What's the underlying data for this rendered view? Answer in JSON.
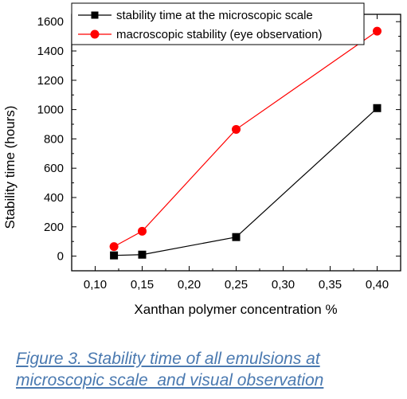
{
  "chart_data": {
    "type": "line",
    "xlabel": "Xanthan polymer concentration %",
    "ylabel": "Stability time (hours)",
    "xlim": [
      0.075,
      0.425
    ],
    "ylim": [
      -100,
      1650
    ],
    "x_ticks": [
      "0,10",
      "0,15",
      "0,20",
      "0,25",
      "0,30",
      "0,35",
      "0,40"
    ],
    "y_ticks": [
      "0",
      "200",
      "400",
      "600",
      "800",
      "1000",
      "1200",
      "1400",
      "1600"
    ],
    "legend_position": "top-left",
    "series": [
      {
        "name": "stability time at the microscopic scale",
        "color": "#000000",
        "marker": "square",
        "x": [
          0.12,
          0.15,
          0.25,
          0.4
        ],
        "y": [
          5,
          10,
          130,
          1010
        ]
      },
      {
        "name": "macroscopic stability (eye observation)",
        "color": "#ff0000",
        "marker": "circle",
        "x": [
          0.12,
          0.15,
          0.25,
          0.4
        ],
        "y": [
          65,
          170,
          865,
          1535
        ]
      }
    ]
  },
  "caption": {
    "line1": "Figure 3. Stability time of all emulsions at",
    "line2": "microscopic scale  and visual observation"
  }
}
